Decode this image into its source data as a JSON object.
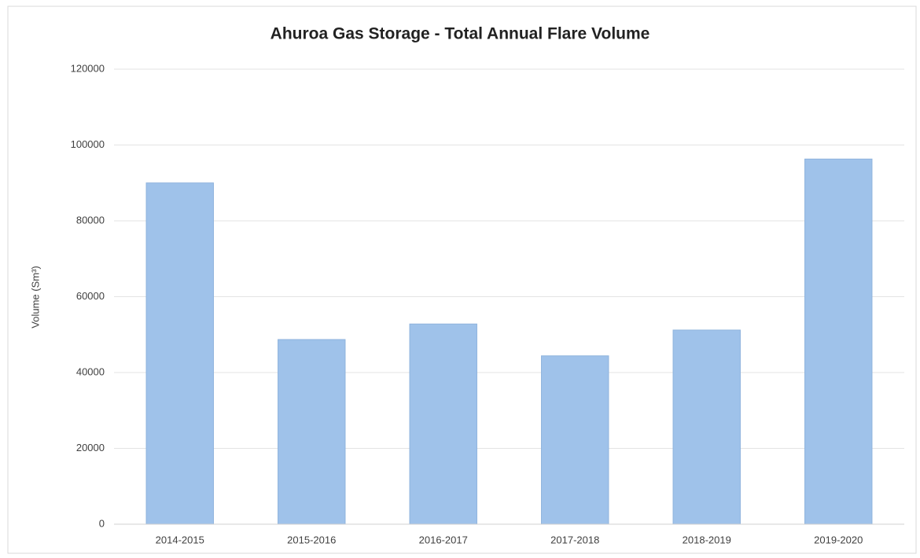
{
  "chart_data": {
    "type": "bar",
    "title": "Ahuroa Gas Storage - Total Annual Flare Volume",
    "y_label": "Volume (Sm³)",
    "categories": [
      "2014-2015",
      "2015-2016",
      "2016-2017",
      "2017-2018",
      "2018-2019",
      "2019-2020"
    ],
    "values": [
      90000,
      48700,
      52800,
      44400,
      51200,
      96300
    ],
    "color": "#9fc2ea",
    "ylim": [
      0,
      120000
    ],
    "yticks": [
      0,
      20000,
      40000,
      60000,
      80000,
      100000,
      120000
    ],
    "grid": true
  }
}
